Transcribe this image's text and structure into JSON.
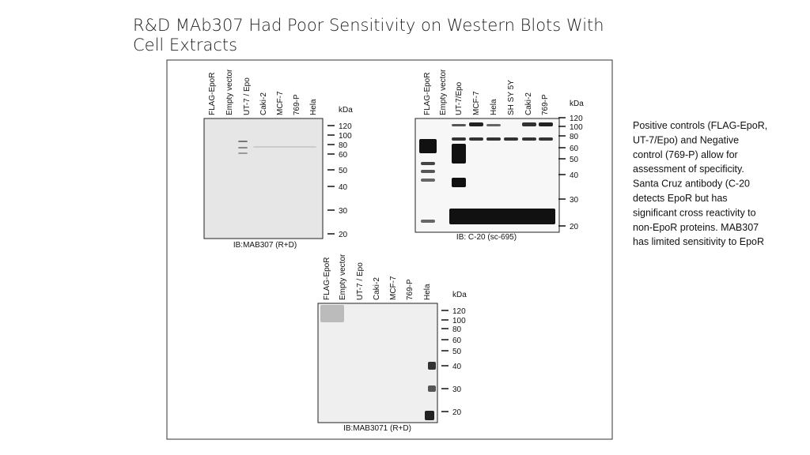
{
  "title": "R&D MAb307 Had Poor Sensitivity on Western Blots With Cell Extracts",
  "blots": [
    {
      "lanes": [
        "FLAG-EpoR",
        "Empty vector",
        "UT-7 / Epo",
        "Caki-2",
        "MCF-7",
        "769-P",
        "Hela"
      ],
      "unit": "kDa",
      "markers": [
        120,
        100,
        80,
        60,
        50,
        40,
        30,
        20
      ],
      "caption": "IB:MAB307 (R+D)"
    },
    {
      "lanes": [
        "FLAG-EpoR",
        "Empty vector",
        "UT-7/Epo",
        "MCF-7",
        "Hela",
        "SH SY 5Y",
        "Caki-2",
        "769-P"
      ],
      "unit": "kDa",
      "markers": [
        120,
        100,
        80,
        60,
        50,
        40,
        30,
        20
      ],
      "caption": "IB: C-20 (sc-695)"
    },
    {
      "lanes": [
        "FLAG-EpoR",
        "Empty vector",
        "UT-7 / Epo",
        "Caki-2",
        "MCF-7",
        "769-P",
        "Hela"
      ],
      "unit": "kDa",
      "markers": [
        120,
        100,
        80,
        60,
        50,
        40,
        30,
        20
      ],
      "caption": "IB:MAB3071 (R+D)"
    }
  ],
  "notes": [
    "Positive controls (FLAG-EpoR,",
    "UT-7/Epo) and Negative",
    "control (769-P) allow for",
    "assessment of specificity.",
    "Santa Cruz antibody (C-20",
    "detects EpoR but has",
    "significant cross reactivity to",
    "non-EpoR proteins. MAB307",
    "has limited sensitivity to EpoR"
  ]
}
